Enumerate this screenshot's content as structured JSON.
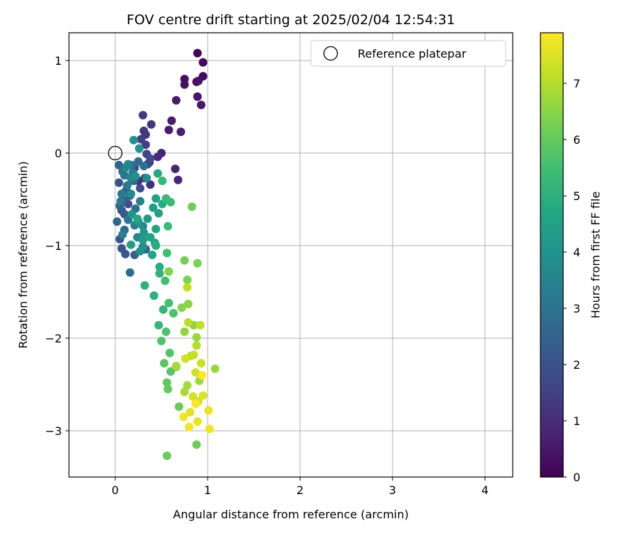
{
  "chart_data": {
    "type": "scatter",
    "title": "FOV centre drift starting at 2025/02/04 12:54:31",
    "xlabel": "Angular distance from reference (arcmin)",
    "ylabel": "Rotation from reference (arcmin)",
    "xlim": [
      -0.5,
      4.3
    ],
    "ylim": [
      -3.5,
      1.3
    ],
    "xticks": [
      0,
      1,
      2,
      3,
      4
    ],
    "yticks": [
      -3,
      -2,
      -1,
      0,
      1
    ],
    "grid": true,
    "legend": {
      "position": "top-right",
      "entries": [
        "Reference platepar"
      ]
    },
    "reference_point": {
      "label": "Reference platepar",
      "x": 0,
      "y": 0,
      "marker": "open-circle"
    },
    "colorbar": {
      "label": "Hours from first FF file",
      "min": 0,
      "max": 7.9,
      "ticks": [
        0,
        1,
        2,
        3,
        4,
        5,
        6,
        7
      ],
      "colormap": "viridis"
    },
    "series": [
      {
        "points": [
          {
            "x": 0.89,
            "y": 1.08,
            "c": 0.1
          },
          {
            "x": 0.95,
            "y": 0.98,
            "c": 0.15
          },
          {
            "x": 0.95,
            "y": 0.83,
            "c": 0.2
          },
          {
            "x": 0.88,
            "y": 0.77,
            "c": 0.25
          },
          {
            "x": 0.75,
            "y": 0.8,
            "c": 0.3
          },
          {
            "x": 0.75,
            "y": 0.74,
            "c": 0.35
          },
          {
            "x": 0.9,
            "y": 0.78,
            "c": 0.4
          },
          {
            "x": 0.89,
            "y": 0.61,
            "c": 0.45
          },
          {
            "x": 0.93,
            "y": 0.52,
            "c": 0.5
          },
          {
            "x": 0.66,
            "y": 0.57,
            "c": 0.55
          },
          {
            "x": 0.61,
            "y": 0.35,
            "c": 0.6
          },
          {
            "x": 0.58,
            "y": 0.25,
            "c": 0.65
          },
          {
            "x": 0.71,
            "y": 0.23,
            "c": 0.7
          },
          {
            "x": 0.5,
            "y": 0.0,
            "c": 0.8
          },
          {
            "x": 0.65,
            "y": -0.17,
            "c": 0.85
          },
          {
            "x": 0.68,
            "y": -0.29,
            "c": 0.9
          },
          {
            "x": 0.46,
            "y": -0.04,
            "c": 0.95
          },
          {
            "x": 0.37,
            "y": -0.1,
            "c": 1.0
          },
          {
            "x": 0.32,
            "y": -0.27,
            "c": 1.05
          },
          {
            "x": 0.38,
            "y": -0.34,
            "c": 1.1
          },
          {
            "x": 0.25,
            "y": -0.3,
            "c": 1.15
          },
          {
            "x": 0.39,
            "y": 0.31,
            "c": 1.2
          },
          {
            "x": 0.31,
            "y": 0.24,
            "c": 1.25
          },
          {
            "x": 0.33,
            "y": 0.2,
            "c": 1.3
          },
          {
            "x": 0.3,
            "y": 0.41,
            "c": 1.35
          },
          {
            "x": 0.28,
            "y": 0.15,
            "c": 1.4
          },
          {
            "x": 0.33,
            "y": 0.09,
            "c": 1.5
          },
          {
            "x": 0.34,
            "y": -0.01,
            "c": 1.6
          },
          {
            "x": 0.35,
            "y": -0.12,
            "c": 1.65
          },
          {
            "x": 0.21,
            "y": -0.16,
            "c": 1.7
          },
          {
            "x": 0.27,
            "y": -0.38,
            "c": 1.8
          },
          {
            "x": 0.38,
            "y": -0.06,
            "c": 1.85
          },
          {
            "x": 0.14,
            "y": -0.55,
            "c": 1.9
          },
          {
            "x": 0.07,
            "y": -0.62,
            "c": 1.95
          },
          {
            "x": 0.04,
            "y": -0.32,
            "c": 2.0
          },
          {
            "x": 0.05,
            "y": -0.93,
            "c": 2.05
          },
          {
            "x": 0.07,
            "y": -1.03,
            "c": 2.1
          },
          {
            "x": 0.11,
            "y": -1.09,
            "c": 2.15
          },
          {
            "x": 0.1,
            "y": -0.66,
            "c": 2.2
          },
          {
            "x": 0.12,
            "y": -0.4,
            "c": 2.25
          },
          {
            "x": 0.16,
            "y": -0.46,
            "c": 2.3
          },
          {
            "x": 0.09,
            "y": -0.51,
            "c": 2.35
          },
          {
            "x": 0.21,
            "y": -1.1,
            "c": 2.4
          },
          {
            "x": 0.33,
            "y": -1.04,
            "c": 2.45
          },
          {
            "x": 0.04,
            "y": -0.13,
            "c": 2.5
          },
          {
            "x": 0.05,
            "y": -0.57,
            "c": 2.55
          },
          {
            "x": 0.02,
            "y": -0.74,
            "c": 2.6
          },
          {
            "x": 0.1,
            "y": -0.83,
            "c": 2.65
          },
          {
            "x": 0.2,
            "y": -0.3,
            "c": 2.7
          },
          {
            "x": 0.25,
            "y": -0.09,
            "c": 2.75
          },
          {
            "x": 0.16,
            "y": -1.29,
            "c": 2.8
          },
          {
            "x": 0.18,
            "y": -0.13,
            "c": 2.85
          },
          {
            "x": 0.22,
            "y": -0.6,
            "c": 2.9
          },
          {
            "x": 0.31,
            "y": -0.14,
            "c": 2.95
          },
          {
            "x": 0.08,
            "y": -0.2,
            "c": 3.0
          },
          {
            "x": 0.14,
            "y": -0.72,
            "c": 3.05
          },
          {
            "x": 0.1,
            "y": -0.24,
            "c": 3.1
          },
          {
            "x": 0.07,
            "y": -0.44,
            "c": 3.15
          },
          {
            "x": 0.06,
            "y": -0.52,
            "c": 3.2
          },
          {
            "x": 0.13,
            "y": -0.35,
            "c": 3.25
          },
          {
            "x": 0.19,
            "y": -0.21,
            "c": 3.3
          },
          {
            "x": 0.27,
            "y": -0.52,
            "c": 3.35
          },
          {
            "x": 0.21,
            "y": -0.78,
            "c": 3.4
          },
          {
            "x": 0.08,
            "y": -0.88,
            "c": 3.45
          },
          {
            "x": 0.11,
            "y": -0.16,
            "c": 3.5
          },
          {
            "x": 0.14,
            "y": -0.12,
            "c": 3.55
          },
          {
            "x": 0.17,
            "y": -0.27,
            "c": 3.6
          },
          {
            "x": 0.24,
            "y": -0.91,
            "c": 3.65
          },
          {
            "x": 0.3,
            "y": -0.79,
            "c": 3.7
          },
          {
            "x": 0.17,
            "y": -0.44,
            "c": 3.75
          },
          {
            "x": 0.34,
            "y": -0.27,
            "c": 3.8
          },
          {
            "x": 0.3,
            "y": -1.01,
            "c": 3.85
          },
          {
            "x": 0.27,
            "y": -1.06,
            "c": 3.9
          },
          {
            "x": 0.22,
            "y": -0.25,
            "c": 3.95
          },
          {
            "x": 0.2,
            "y": 0.14,
            "c": 4.0
          },
          {
            "x": 0.26,
            "y": 0.05,
            "c": 4.05
          },
          {
            "x": 0.18,
            "y": -0.66,
            "c": 4.1
          },
          {
            "x": 0.25,
            "y": -0.74,
            "c": 4.15
          },
          {
            "x": 0.31,
            "y": -0.86,
            "c": 4.2
          },
          {
            "x": 0.35,
            "y": -0.71,
            "c": 4.25
          },
          {
            "x": 0.3,
            "y": -0.94,
            "c": 4.3
          },
          {
            "x": 0.17,
            "y": -0.99,
            "c": 4.35
          },
          {
            "x": 0.41,
            "y": -0.59,
            "c": 4.4
          },
          {
            "x": 0.44,
            "y": -0.49,
            "c": 4.45
          },
          {
            "x": 0.47,
            "y": -0.65,
            "c": 4.5
          },
          {
            "x": 0.38,
            "y": -0.91,
            "c": 4.55
          },
          {
            "x": 0.4,
            "y": -1.1,
            "c": 4.6
          },
          {
            "x": 0.43,
            "y": -0.97,
            "c": 4.65
          },
          {
            "x": 0.44,
            "y": -0.82,
            "c": 4.7
          },
          {
            "x": 0.24,
            "y": -0.71,
            "c": 4.75
          },
          {
            "x": 0.46,
            "y": -0.22,
            "c": 4.8
          },
          {
            "x": 0.51,
            "y": -0.55,
            "c": 4.85
          },
          {
            "x": 0.44,
            "y": -1.0,
            "c": 4.9
          },
          {
            "x": 0.48,
            "y": -1.23,
            "c": 4.95
          },
          {
            "x": 0.42,
            "y": -1.54,
            "c": 5.0
          },
          {
            "x": 0.32,
            "y": -1.43,
            "c": 5.05
          },
          {
            "x": 0.48,
            "y": -1.3,
            "c": 5.1
          },
          {
            "x": 0.52,
            "y": -1.69,
            "c": 5.15
          },
          {
            "x": 0.47,
            "y": -1.86,
            "c": 5.2
          },
          {
            "x": 0.51,
            "y": -0.3,
            "c": 5.25
          },
          {
            "x": 0.55,
            "y": -0.49,
            "c": 5.3
          },
          {
            "x": 0.6,
            "y": -0.53,
            "c": 5.35
          },
          {
            "x": 0.57,
            "y": -0.79,
            "c": 5.4
          },
          {
            "x": 0.56,
            "y": -1.08,
            "c": 5.45
          },
          {
            "x": 0.54,
            "y": -1.38,
            "c": 5.5
          },
          {
            "x": 0.58,
            "y": -1.62,
            "c": 5.55
          },
          {
            "x": 0.63,
            "y": -1.73,
            "c": 5.6
          },
          {
            "x": 0.55,
            "y": -1.93,
            "c": 5.65
          },
          {
            "x": 0.5,
            "y": -2.03,
            "c": 5.7
          },
          {
            "x": 0.59,
            "y": -2.16,
            "c": 5.75
          },
          {
            "x": 0.6,
            "y": -2.36,
            "c": 5.8
          },
          {
            "x": 0.53,
            "y": -2.27,
            "c": 5.85
          },
          {
            "x": 0.66,
            "y": -2.31,
            "c": 5.9
          },
          {
            "x": 0.56,
            "y": -2.48,
            "c": 5.95
          },
          {
            "x": 0.57,
            "y": -2.55,
            "c": 6.0
          },
          {
            "x": 0.69,
            "y": -2.74,
            "c": 6.05
          },
          {
            "x": 0.56,
            "y": -3.27,
            "c": 6.1
          },
          {
            "x": 0.88,
            "y": -3.15,
            "c": 6.15
          },
          {
            "x": 0.83,
            "y": -0.58,
            "c": 6.2
          },
          {
            "x": 0.75,
            "y": -1.16,
            "c": 6.25
          },
          {
            "x": 0.89,
            "y": -1.19,
            "c": 6.3
          },
          {
            "x": 0.78,
            "y": -1.37,
            "c": 6.35
          },
          {
            "x": 0.58,
            "y": -1.28,
            "c": 6.4
          },
          {
            "x": 0.72,
            "y": -1.67,
            "c": 6.45
          },
          {
            "x": 0.79,
            "y": -1.63,
            "c": 6.5
          },
          {
            "x": 0.85,
            "y": -1.86,
            "c": 6.55
          },
          {
            "x": 0.75,
            "y": -1.93,
            "c": 6.6
          },
          {
            "x": 0.88,
            "y": -1.99,
            "c": 6.65
          },
          {
            "x": 1.08,
            "y": -2.33,
            "c": 6.7
          },
          {
            "x": 0.91,
            "y": -2.46,
            "c": 6.75
          },
          {
            "x": 0.78,
            "y": -2.51,
            "c": 6.8
          },
          {
            "x": 0.75,
            "y": -2.58,
            "c": 6.85
          },
          {
            "x": 0.66,
            "y": -2.3,
            "c": 6.9
          },
          {
            "x": 0.82,
            "y": -2.19,
            "c": 6.95
          },
          {
            "x": 0.88,
            "y": -2.08,
            "c": 7.0
          },
          {
            "x": 0.79,
            "y": -1.83,
            "c": 7.05
          },
          {
            "x": 0.92,
            "y": -1.86,
            "c": 7.1
          },
          {
            "x": 0.78,
            "y": -1.45,
            "c": 7.15
          },
          {
            "x": 0.85,
            "y": -2.18,
            "c": 7.2
          },
          {
            "x": 0.93,
            "y": -2.27,
            "c": 7.25
          },
          {
            "x": 0.87,
            "y": -2.37,
            "c": 7.3
          },
          {
            "x": 0.76,
            "y": -2.22,
            "c": 7.35
          },
          {
            "x": 0.84,
            "y": -2.63,
            "c": 7.4
          },
          {
            "x": 0.9,
            "y": -2.68,
            "c": 7.45
          },
          {
            "x": 0.95,
            "y": -2.62,
            "c": 7.5
          },
          {
            "x": 0.81,
            "y": -2.8,
            "c": 7.55
          },
          {
            "x": 0.89,
            "y": -2.9,
            "c": 7.6
          },
          {
            "x": 1.01,
            "y": -2.78,
            "c": 7.65
          },
          {
            "x": 1.02,
            "y": -2.98,
            "c": 7.7
          },
          {
            "x": 0.74,
            "y": -2.85,
            "c": 7.75
          },
          {
            "x": 0.8,
            "y": -2.96,
            "c": 7.8
          },
          {
            "x": 0.87,
            "y": -2.71,
            "c": 7.85
          },
          {
            "x": 0.94,
            "y": -2.4,
            "c": 7.9
          }
        ]
      }
    ]
  }
}
